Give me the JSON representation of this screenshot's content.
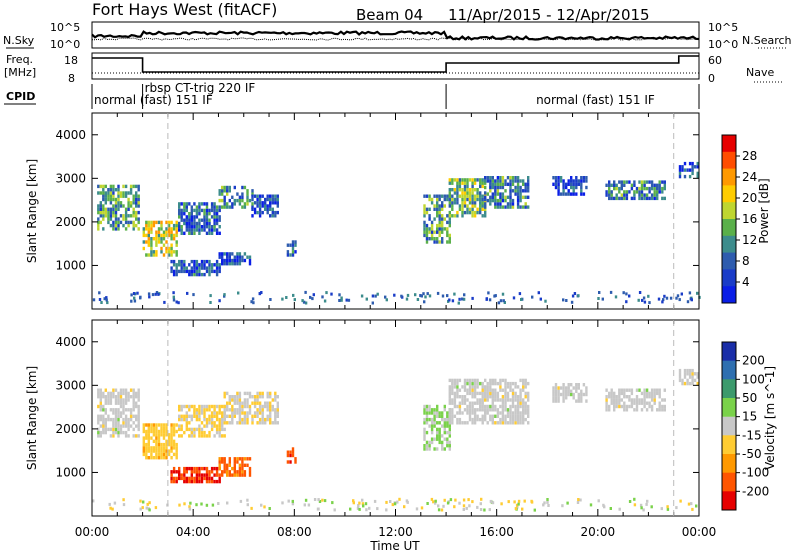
{
  "header": {
    "station": "Fort Hays West (fitACF)",
    "beam": "Beam 04",
    "date_range": "11/Apr/2015 - 12/Apr/2015"
  },
  "strips": {
    "nsky_label": "N.Sky",
    "nsearch_label": "N.Search",
    "freq_label_1": "Freq.",
    "freq_label_2": "[MHz]",
    "nave_label": "Nave",
    "cpid_label": "CPID",
    "noise_ticks_left": [
      "10^5",
      "10^0"
    ],
    "noise_ticks_right": [
      "10^5",
      "10^0"
    ],
    "freq_ticks": [
      "18",
      "8"
    ],
    "nave_ticks": [
      "60",
      "0"
    ],
    "modes": [
      {
        "label": "normal (fast) 151 IF",
        "start_h": 0,
        "end_h": 2.0
      },
      {
        "label": "rbsp CT-trig 220 IF",
        "start_h": 2.0,
        "end_h": 14.0
      },
      {
        "label": "normal (fast) 151 IF",
        "start_h": 14.0,
        "end_h": 24
      }
    ]
  },
  "panels": {
    "power": {
      "ylabel": "Slant Range [km]",
      "colorbar_label": "Power [dB]",
      "colorbar_ticks": [
        "28",
        "24",
        "20",
        "16",
        "12",
        "8",
        "4"
      ],
      "colorbar_colors": [
        "#e60000",
        "#ff4d00",
        "#ff9900",
        "#ffcc00",
        "#bfd630",
        "#5ab04a",
        "#3c8c8c",
        "#2e5cae",
        "#1a3cc8",
        "#0a1ee6"
      ]
    },
    "velocity": {
      "ylabel": "Slant Range [km]",
      "colorbar_label": "Velocity [m s^-1]",
      "colorbar_ticks": [
        "200",
        "100",
        "50",
        "15",
        "-15",
        "-50",
        "-100",
        "-200"
      ],
      "colorbar_colors": [
        "#1a2ea8",
        "#2e6fb0",
        "#3c9a6c",
        "#7ad24a",
        "#c8c8c8",
        "#ffcc33",
        "#ff9900",
        "#ff5500",
        "#e60000"
      ]
    }
  },
  "xaxis": {
    "label": "Time UT",
    "ticks": [
      "00:00",
      "04:00",
      "08:00",
      "12:00",
      "16:00",
      "20:00",
      "00:00"
    ]
  },
  "chart_data": [
    {
      "type": "heatmap",
      "name_panel": "power",
      "x_unit": "hours UT",
      "y_unit": "km",
      "xlim": [
        0,
        24
      ],
      "ylim": [
        0,
        4500
      ],
      "yticks": [
        1000,
        2000,
        3000,
        4000
      ],
      "mode_change_lines_h": [
        3.0,
        23.0
      ],
      "regions": [
        {
          "t0": 0.2,
          "t1": 1.9,
          "r0": 1800,
          "r1": 2800,
          "value": 12
        },
        {
          "t0": 2.0,
          "t1": 3.4,
          "r0": 1200,
          "r1": 2000,
          "value": 18
        },
        {
          "t0": 3.4,
          "t1": 5.0,
          "r0": 1700,
          "r1": 2400,
          "value": 8
        },
        {
          "t0": 5.0,
          "t1": 6.3,
          "r0": 2300,
          "r1": 2800,
          "value": 10
        },
        {
          "t0": 6.3,
          "t1": 7.3,
          "r0": 2100,
          "r1": 2600,
          "value": 6
        },
        {
          "t0": 3.1,
          "t1": 5.0,
          "r0": 750,
          "r1": 1100,
          "value": 6
        },
        {
          "t0": 5.0,
          "t1": 6.2,
          "r0": 1000,
          "r1": 1300,
          "value": 6
        },
        {
          "t0": 7.7,
          "t1": 8.0,
          "r0": 1200,
          "r1": 1550,
          "value": 8
        },
        {
          "t0": 13.1,
          "t1": 14.1,
          "r0": 1500,
          "r1": 2600,
          "value": 12
        },
        {
          "t0": 14.1,
          "t1": 15.5,
          "r0": 2100,
          "r1": 3000,
          "value": 14
        },
        {
          "t0": 15.5,
          "t1": 17.3,
          "r0": 2300,
          "r1": 3000,
          "value": 10
        },
        {
          "t0": 18.2,
          "t1": 19.6,
          "r0": 2600,
          "r1": 3000,
          "value": 6
        },
        {
          "t0": 20.3,
          "t1": 22.7,
          "r0": 2500,
          "r1": 2900,
          "value": 10
        },
        {
          "t0": 23.2,
          "t1": 24.0,
          "r0": 3000,
          "r1": 3350,
          "value": 6
        }
      ]
    },
    {
      "type": "heatmap",
      "name_panel": "velocity",
      "x_unit": "hours UT",
      "y_unit": "km",
      "xlim": [
        0,
        24
      ],
      "ylim": [
        0,
        4500
      ],
      "yticks": [
        1000,
        2000,
        3000,
        4000
      ],
      "mode_change_lines_h": [
        3.0,
        23.0
      ],
      "regions": [
        {
          "t0": 0.2,
          "t1": 1.9,
          "r0": 1800,
          "r1": 2900,
          "value": 0
        },
        {
          "t0": 2.0,
          "t1": 3.4,
          "r0": 1300,
          "r1": 2100,
          "value": -60
        },
        {
          "t0": 3.4,
          "t1": 5.2,
          "r0": 1800,
          "r1": 2500,
          "value": -40
        },
        {
          "t0": 5.2,
          "t1": 7.3,
          "r0": 2100,
          "r1": 2800,
          "value": -20
        },
        {
          "t0": 3.1,
          "t1": 5.0,
          "r0": 750,
          "r1": 1100,
          "value": -200
        },
        {
          "t0": 5.0,
          "t1": 6.2,
          "r0": 900,
          "r1": 1300,
          "value": -150
        },
        {
          "t0": 7.7,
          "t1": 8.0,
          "r0": 1200,
          "r1": 1550,
          "value": -200
        },
        {
          "t0": 13.1,
          "t1": 14.1,
          "r0": 1500,
          "r1": 2500,
          "value": 30
        },
        {
          "t0": 14.1,
          "t1": 17.3,
          "r0": 2100,
          "r1": 3100,
          "value": 0
        },
        {
          "t0": 18.2,
          "t1": 19.6,
          "r0": 2600,
          "r1": 3000,
          "value": 0
        },
        {
          "t0": 20.3,
          "t1": 22.7,
          "r0": 2400,
          "r1": 2900,
          "value": 0
        },
        {
          "t0": 23.2,
          "t1": 24.0,
          "r0": 3000,
          "r1": 3350,
          "value": 0
        }
      ]
    }
  ]
}
